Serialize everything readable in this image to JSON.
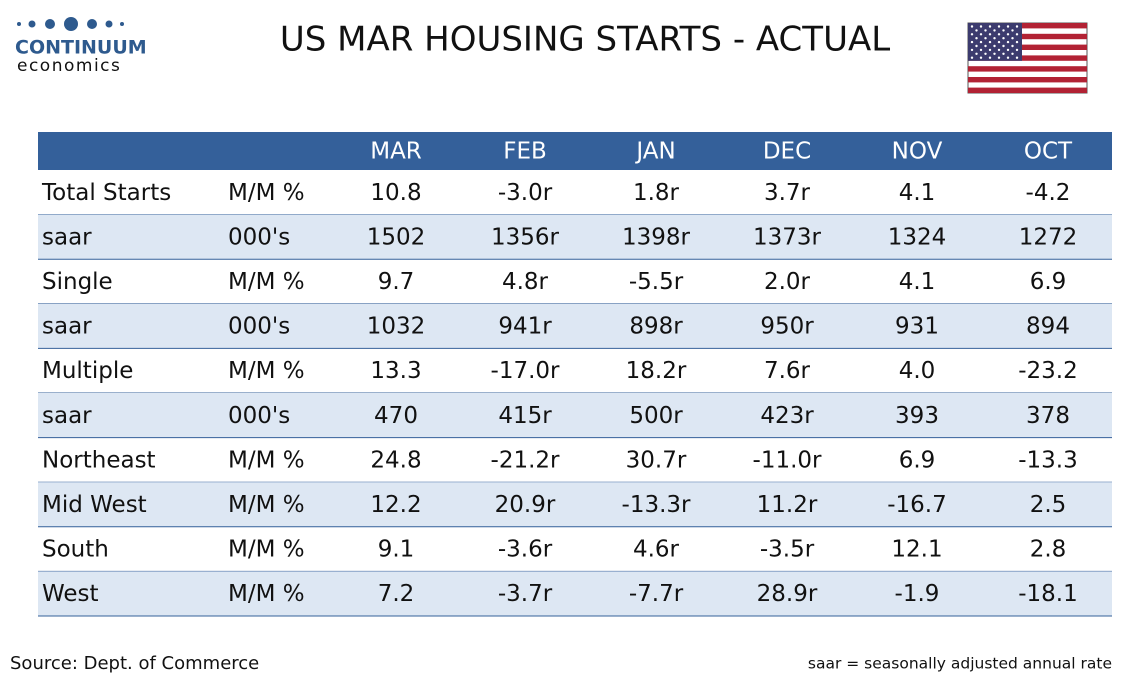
{
  "header": {
    "logo_name": "CONTINUUM",
    "logo_sub": "economics",
    "title": "US MAR HOUSING STARTS - ACTUAL"
  },
  "table": {
    "columns": [
      "MAR",
      "FEB",
      "JAN",
      "DEC",
      "NOV",
      "OCT"
    ],
    "rows": [
      [
        "Total Starts",
        "M/M %",
        "10.8",
        "-3.0r",
        "1.8r",
        "3.7r",
        "4.1",
        "-4.2"
      ],
      [
        "saar",
        "000's",
        "1502",
        "1356r",
        "1398r",
        "1373r",
        "1324",
        "1272"
      ],
      [
        "Single",
        "M/M %",
        "9.7",
        "4.8r",
        "-5.5r",
        "2.0r",
        "4.1",
        "6.9"
      ],
      [
        "saar",
        "000's",
        "1032",
        "941r",
        "898r",
        "950r",
        "931",
        "894"
      ],
      [
        "Multiple",
        "M/M %",
        "13.3",
        "-17.0r",
        "18.2r",
        "7.6r",
        "4.0",
        "-23.2"
      ],
      [
        "saar",
        "000's",
        "470",
        "415r",
        "500r",
        "423r",
        "393",
        "378"
      ],
      [
        "Northeast",
        "M/M %",
        "24.8",
        "-21.2r",
        "30.7r",
        "-11.0r",
        "6.9",
        "-13.3"
      ],
      [
        "Mid West",
        "M/M %",
        "12.2",
        "20.9r",
        "-13.3r",
        "11.2r",
        "-16.7",
        "2.5"
      ],
      [
        "South",
        "M/M %",
        "9.1",
        "-3.6r",
        "4.6r",
        "-3.5r",
        "12.1",
        "2.8"
      ],
      [
        "West",
        "M/M %",
        "7.2",
        "-3.7r",
        "-7.7r",
        "28.9r",
        "-1.9",
        "-18.1"
      ]
    ]
  },
  "footer": {
    "source": "Source: Dept. of Commerce",
    "note": "saar = seasonally adjusted annual rate"
  }
}
